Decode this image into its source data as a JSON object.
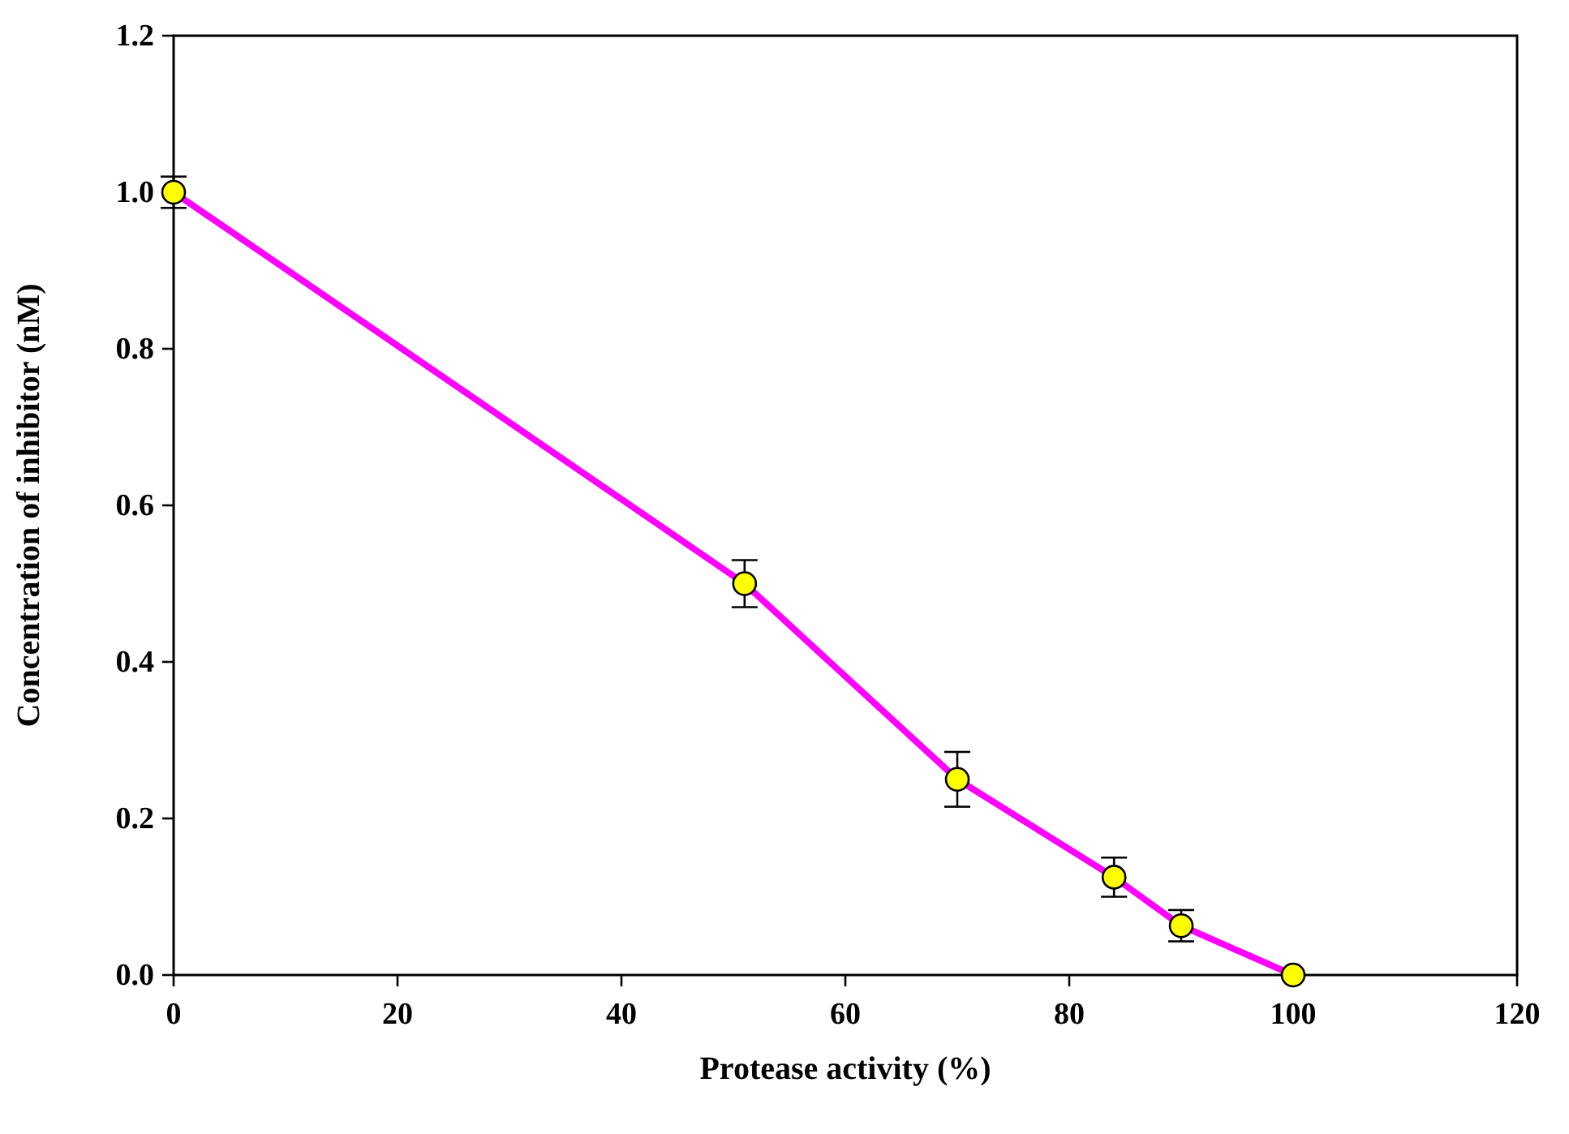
{
  "chart_data": {
    "type": "line",
    "xlabel": "Protease activity (%)",
    "ylabel": "Concentration of inhibitor (nM)",
    "x": [
      0,
      51,
      70,
      84,
      90,
      100
    ],
    "series": [
      {
        "color": "#ff00ff",
        "values": [
          1.0,
          0.5,
          0.25,
          0.125,
          0.063,
          0
        ],
        "errors": [
          0.02,
          0.03,
          0.035,
          0.025,
          0.02,
          null
        ]
      }
    ],
    "xlim": [
      0,
      120
    ],
    "xticks": [
      0,
      20,
      40,
      60,
      80,
      100,
      120
    ],
    "ylim": [
      0,
      1.2
    ],
    "yticks": [
      {
        "value": 0,
        "label": "0.0"
      },
      {
        "value": 0.2,
        "label": "0.2"
      },
      {
        "value": 0.4,
        "label": "0.4"
      },
      {
        "value": 0.6,
        "label": "0.6"
      },
      {
        "value": 0.8,
        "label": "0.8"
      },
      {
        "value": 1,
        "label": "1.0"
      },
      {
        "value": 1.2,
        "label": "1.2"
      }
    ],
    "marker": "circle",
    "line_style": "solid",
    "grid": false
  }
}
